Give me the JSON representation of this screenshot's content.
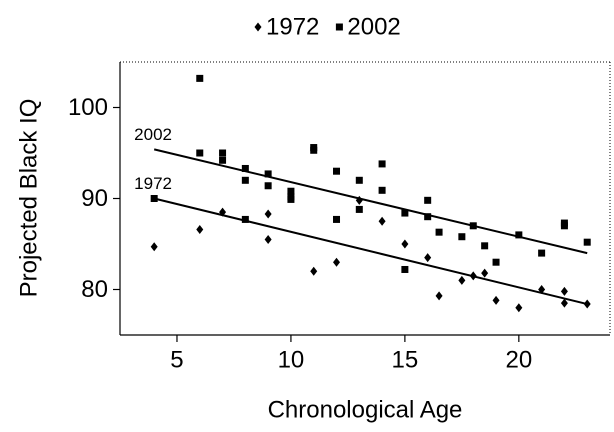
{
  "chart_data": {
    "type": "scatter",
    "x_label": "Chronological Age",
    "y_label": "Projected Black IQ",
    "xlim": [
      2.5,
      24
    ],
    "ylim": [
      75,
      105
    ],
    "xticks": [
      5,
      10,
      15,
      20
    ],
    "yticks": [
      80,
      90,
      100
    ],
    "series": [
      {
        "name": "1972",
        "marker": "diamond",
        "color": "#000000",
        "x": [
          4,
          6,
          7,
          9,
          9,
          11,
          12,
          13,
          14,
          15,
          16,
          16.5,
          17.5,
          18,
          18.5,
          19,
          20,
          21,
          22,
          22,
          23
        ],
        "values": [
          84.7,
          86.6,
          88.5,
          88.3,
          85.5,
          82,
          83,
          89.8,
          87.5,
          85,
          83.5,
          79.3,
          81,
          81.5,
          81.8,
          78.8,
          78,
          80,
          79.8,
          78.5,
          78.4
        ],
        "trend_x": [
          4,
          23
        ],
        "trend_y": [
          90.0,
          78.4
        ]
      },
      {
        "name": "2002",
        "marker": "square",
        "color": "#000000",
        "x": [
          4,
          6,
          6,
          7,
          7,
          8,
          8,
          8,
          9,
          9,
          10,
          10,
          10,
          11,
          11,
          12,
          12,
          13,
          13,
          14,
          14,
          15,
          15,
          16,
          16,
          16.5,
          17.5,
          18,
          18.5,
          19,
          20,
          21,
          22,
          22,
          23
        ],
        "values": [
          90,
          103.2,
          95,
          95,
          94.2,
          93.3,
          92,
          87.7,
          92.7,
          91.4,
          90.8,
          90.2,
          89.9,
          95.6,
          95.3,
          93,
          87.7,
          92,
          88.8,
          93.8,
          90.9,
          88.4,
          82.2,
          89.8,
          88,
          86.3,
          85.8,
          87,
          84.8,
          83,
          86,
          84,
          87.3,
          87,
          85.2
        ],
        "trend_x": [
          4,
          23
        ],
        "trend_y": [
          95.4,
          84.0
        ]
      }
    ]
  }
}
